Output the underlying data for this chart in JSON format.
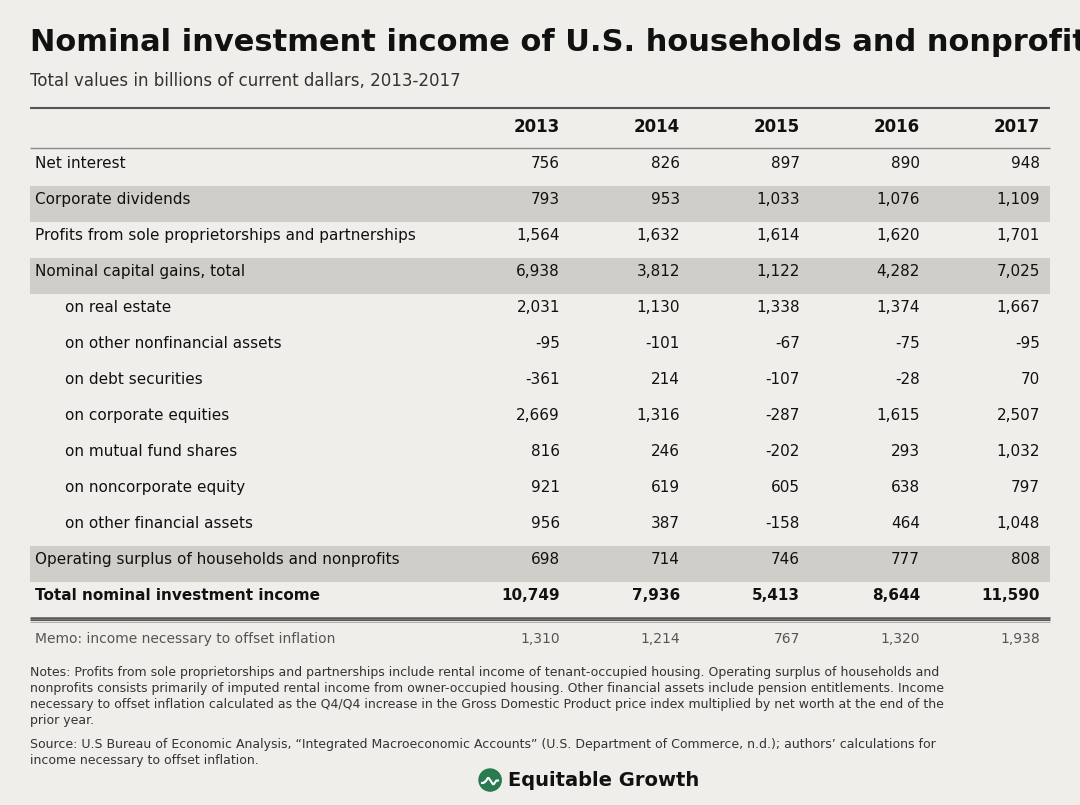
{
  "title": "Nominal investment income of U.S. households and nonprofits",
  "subtitle": "Total values in billions of current dallars, 2013-2017",
  "columns": [
    "",
    "2013",
    "2014",
    "2015",
    "2016",
    "2017"
  ],
  "rows": [
    {
      "label": "Net interest",
      "values": [
        "756",
        "826",
        "897",
        "890",
        "948"
      ],
      "shaded": false,
      "bold": false,
      "indent": false
    },
    {
      "label": "Corporate dividends",
      "values": [
        "793",
        "953",
        "1,033",
        "1,076",
        "1,109"
      ],
      "shaded": true,
      "bold": false,
      "indent": false
    },
    {
      "label": "Profits from sole proprietorships and partnerships",
      "values": [
        "1,564",
        "1,632",
        "1,614",
        "1,620",
        "1,701"
      ],
      "shaded": false,
      "bold": false,
      "indent": false
    },
    {
      "label": "Nominal capital gains, total",
      "values": [
        "6,938",
        "3,812",
        "1,122",
        "4,282",
        "7,025"
      ],
      "shaded": true,
      "bold": false,
      "indent": false
    },
    {
      "label": "on real estate",
      "values": [
        "2,031",
        "1,130",
        "1,338",
        "1,374",
        "1,667"
      ],
      "shaded": false,
      "bold": false,
      "indent": true
    },
    {
      "label": "on other nonfinancial assets",
      "values": [
        "-95",
        "-101",
        "-67",
        "-75",
        "-95"
      ],
      "shaded": false,
      "bold": false,
      "indent": true
    },
    {
      "label": "on debt securities",
      "values": [
        "-361",
        "214",
        "-107",
        "-28",
        "70"
      ],
      "shaded": false,
      "bold": false,
      "indent": true
    },
    {
      "label": "on corporate equities",
      "values": [
        "2,669",
        "1,316",
        "-287",
        "1,615",
        "2,507"
      ],
      "shaded": false,
      "bold": false,
      "indent": true
    },
    {
      "label": "on mutual fund shares",
      "values": [
        "816",
        "246",
        "-202",
        "293",
        "1,032"
      ],
      "shaded": false,
      "bold": false,
      "indent": true
    },
    {
      "label": "on noncorporate equity",
      "values": [
        "921",
        "619",
        "605",
        "638",
        "797"
      ],
      "shaded": false,
      "bold": false,
      "indent": true
    },
    {
      "label": "on other financial assets",
      "values": [
        "956",
        "387",
        "-158",
        "464",
        "1,048"
      ],
      "shaded": false,
      "bold": false,
      "indent": true
    },
    {
      "label": "Operating surplus of households and nonprofits",
      "values": [
        "698",
        "714",
        "746",
        "777",
        "808"
      ],
      "shaded": true,
      "bold": false,
      "indent": false
    },
    {
      "label": "Total nominal investment income",
      "values": [
        "10,749",
        "7,936",
        "5,413",
        "8,644",
        "11,590"
      ],
      "shaded": false,
      "bold": true,
      "indent": false
    }
  ],
  "memo_label": "Memo: income necessary to offset inflation",
  "memo_values": [
    "1,310",
    "1,214",
    "767",
    "1,320",
    "1,938"
  ],
  "notes_text": "Notes: Profits from sole proprietorships and partnerships include rental income of tenant-occupied housing. Operating surplus of households and\nnonprofits consists primarily of imputed rental income from owner-occupied housing. Other financial assets include pension entitlements. Income\nnecessary to offset inflation calculated as the Q4/Q4 increase in the Gross Domestic Product price index multiplied by net worth at the end of the\nprior year.",
  "source_text": "Source: U.S Bureau of Economic Analysis, “Integrated Macroeconomic Accounts” (U.S. Department of Commerce, n.d.); authors’ calculations for\nincome necessary to offset inflation.",
  "bg_color": "#f0eeea",
  "shaded_color": "#d0cec8",
  "title_fontsize": 22,
  "subtitle_fontsize": 12,
  "header_fontsize": 12,
  "data_fontsize": 11,
  "memo_fontsize": 10,
  "notes_fontsize": 9
}
